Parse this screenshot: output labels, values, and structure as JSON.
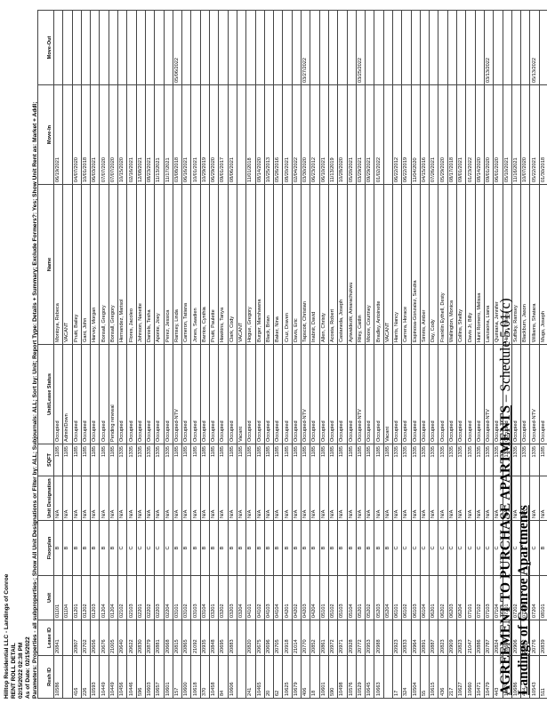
{
  "header": {
    "company": "Hilltop Residential LLC - Landings of Conroe",
    "report_title": "RENT ROLL DETAIL",
    "printed": "02/15/2022 02:38 PM",
    "as_of": "As of Date: 02/15/2022",
    "parameters": "Parameters: Properties - all subproperties-; Show All Unit Designations or Filter by: ALL; Subjournals: ALL; Sort by: Unit; Report Type: Details + Summary; Exclude Formers?: Yes; Show Unit Rent as: Market + Addl;"
  },
  "columns": [
    "Resh ID",
    "Lease ID",
    "Unit",
    "Floorplan",
    "Unit Designation",
    "SQFT",
    "Unit/Lease Status",
    "Name",
    "Move-In",
    "Move-Out"
  ],
  "rows": [
    [
      "10586",
      "20841",
      "01101",
      "B",
      "N/A",
      "1185",
      "Occupied",
      "Montoya, Rebeca",
      "06/19/2021",
      ""
    ],
    [
      "",
      "",
      "01104",
      "B",
      "N/A",
      "1185",
      "Admin/Down",
      "VACANT",
      "",
      ""
    ],
    [
      "416",
      "20807",
      "01201",
      "B",
      "N/A",
      "1185",
      "Occupied",
      "Pruitt, Bailey",
      "04/07/2020",
      ""
    ],
    [
      "226",
      "20702",
      "01202",
      "B",
      "N/A",
      "1185",
      "Occupied",
      "Gant, John",
      "10/01/2018",
      ""
    ],
    [
      "10593",
      "20656",
      "01203",
      "B",
      "N/A",
      "1185",
      "Occupied",
      "Harvey, Morgan",
      "06/03/2021",
      ""
    ],
    [
      "10449",
      "20676",
      "01204",
      "B",
      "N/A",
      "1185",
      "Occupied",
      "Bonsall, Gregory",
      "07/07/2020",
      ""
    ],
    [
      "10449",
      "21005",
      "01204",
      "B",
      "N/A",
      "1185",
      "Pending renewal",
      "Bonsall, Gregory",
      "07/07/2020",
      ""
    ],
    [
      "10456",
      "20640",
      "02102",
      "C",
      "N/A",
      "1335",
      "Occupied",
      "Hernandez, Marisol",
      "10/15/2020",
      ""
    ],
    [
      "10446",
      "20622",
      "02103",
      "C",
      "N/A",
      "1335",
      "Occupied",
      "Flores, Jacoleo",
      "02/16/2021",
      ""
    ],
    [
      "596",
      "20830",
      "02201",
      "C",
      "N/A",
      "1335",
      "Occupied",
      "Johnson, Nanette",
      "12/08/2021",
      ""
    ],
    [
      "10603",
      "20879",
      "02202",
      "C",
      "N/A",
      "1335",
      "Occupied",
      "Daniels, Tesha",
      "08/23/2021",
      ""
    ],
    [
      "10657",
      "20881",
      "02203",
      "C",
      "N/A",
      "1335",
      "Occupied",
      "Aponte, Joey",
      "11/13/2021",
      ""
    ],
    [
      "10601",
      "20668",
      "02204",
      "C",
      "N/A",
      "1335",
      "Occupied",
      "Perez, Jessica",
      "11/17/2021",
      ""
    ],
    [
      "157",
      "20815",
      "03101",
      "B",
      "N/A",
      "1185",
      "Occupied-NTV",
      "Ramsey, Linda",
      "03/08/2018",
      "05/06/2022"
    ],
    [
      "10600",
      "20865",
      "03102",
      "B",
      "N/A",
      "1185",
      "Occupied",
      "Cameron, Tatiana",
      "06/16/2021",
      ""
    ],
    [
      "10618",
      "21092",
      "03103",
      "B",
      "N/A",
      "1185",
      "Occupied",
      "Jones, Saadien",
      "10/01/2021",
      ""
    ],
    [
      "370",
      "20935",
      "03104",
      "B",
      "N/A",
      "1185",
      "Occupied",
      "Barrios, Cynthia",
      "10/29/2019",
      ""
    ],
    [
      "10458",
      "20848",
      "03201",
      "B",
      "N/A",
      "1185",
      "Occupied",
      "Pruitt, Paulette",
      "06/29/2020",
      ""
    ],
    [
      "84",
      "20695",
      "03202",
      "B",
      "N/A",
      "1185",
      "Occupied",
      "Hawkins, Tanya",
      "09/01/2017",
      ""
    ],
    [
      "10606",
      "20883",
      "03203",
      "B",
      "N/A",
      "1185",
      "Occupied",
      "Clark, Cody",
      "08/06/2021",
      ""
    ],
    [
      "",
      "",
      "03204",
      "B",
      "N/A",
      "1185",
      "Vacant",
      "VACANT",
      "",
      ""
    ],
    [
      "241",
      "20820",
      "04101",
      "B",
      "N/A",
      "1185",
      "Occupied",
      "Hogue, Gregory",
      "11/01/2018",
      ""
    ],
    [
      "10465",
      "20675",
      "04102",
      "B",
      "N/A",
      "1185",
      "Occupied",
      "Burger, Marshawna",
      "08/14/2020",
      ""
    ],
    [
      "20",
      "20696",
      "04103",
      "B",
      "N/A",
      "1185",
      "Occupied",
      "Black, Brian",
      "10/25/2013",
      ""
    ],
    [
      "62",
      "20705",
      "04104",
      "B",
      "N/A",
      "1185",
      "Occupied",
      "Baker, Nina",
      "05/26/2016",
      ""
    ],
    [
      "10625",
      "20918",
      "04201",
      "B",
      "N/A",
      "1185",
      "Occupied",
      "Cruz, Draven",
      "08/20/2021",
      ""
    ],
    [
      "10679",
      "21014",
      "04202",
      "B",
      "N/A",
      "1185",
      "Occupied",
      "Davis, Eric",
      "02/04/2022",
      ""
    ],
    [
      "406",
      "20770",
      "04203",
      "B",
      "N/A",
      "1185",
      "Occupied-NTV",
      "Tapscott, Christian",
      "03/30/2020",
      "03/27/2022"
    ],
    [
      "18",
      "20852",
      "04204",
      "B",
      "N/A",
      "1185",
      "Occupied",
      "Inabnit, David",
      "06/23/2012",
      ""
    ],
    [
      "10601",
      "20861",
      "05101",
      "B",
      "N/A",
      "1185",
      "Occupied",
      "Allen, Christy",
      "06/10/2021",
      ""
    ],
    [
      "590",
      "20972",
      "05102",
      "B",
      "N/A",
      "1185",
      "Occupied",
      "Acosta, Robert",
      "11/13/2019",
      ""
    ],
    [
      "10498",
      "20971",
      "05103",
      "B",
      "N/A",
      "1185",
      "Occupied",
      "Castaneda, Joseph",
      "10/28/2020",
      ""
    ],
    [
      "10576",
      "20928",
      "05104",
      "B",
      "N/A",
      "1185",
      "Occupied",
      "Ayiwaldezik, Amarachukwu",
      "05/20/2021",
      ""
    ],
    [
      "10529",
      "20772",
      "05201",
      "B",
      "N/A",
      "1185",
      "Occupied-NTV",
      "Riley, Caitlin",
      "03/29/2021",
      "03/25/2022"
    ],
    [
      "10645",
      "20953",
      "05202",
      "B",
      "N/A",
      "1185",
      "Occupied",
      "Moore, Courtney",
      "09/29/2021",
      ""
    ],
    [
      "10663",
      "20988",
      "05203",
      "B",
      "N/A",
      "1185",
      "Occupied",
      "Bradley, Antoinette",
      "01/02/2022",
      ""
    ],
    [
      "",
      "",
      "05204",
      "B",
      "N/A",
      "1185",
      "Vacant",
      "VACANT",
      "",
      ""
    ],
    [
      "17",
      "20923",
      "06101",
      "C",
      "N/A",
      "1335",
      "Occupied",
      "Harris, Nancy",
      "06/22/2012",
      ""
    ],
    [
      "324",
      "20833",
      "06102",
      "C",
      "N/A",
      "1335",
      "Occupied",
      "Carrera, Horace",
      "06/22/2019",
      ""
    ],
    [
      "10504",
      "20964",
      "06103",
      "C",
      "N/A",
      "1335",
      "Occupied",
      "Espinosa-Gonzalez, Sandra",
      "11/04/2020",
      ""
    ],
    [
      "55",
      "20891",
      "06104",
      "C",
      "N/A",
      "1335",
      "Occupied",
      "Simms, Amber",
      "04/15/2016",
      ""
    ],
    [
      "10615",
      "20887",
      "06201",
      "C",
      "N/A",
      "1335",
      "Occupied",
      "Day, Cody",
      "07/26/2021",
      ""
    ],
    [
      "436",
      "20823",
      "06202",
      "C",
      "N/A",
      "1335",
      "Occupied",
      "Franklin Eythell, Desty",
      "05/29/2020",
      ""
    ],
    [
      "217",
      "20909",
      "06203",
      "C",
      "N/A",
      "1335",
      "Occupied",
      "Wallington, Monica",
      "08/17/2018",
      ""
    ],
    [
      "10627",
      "20823",
      "06204",
      "C",
      "N/A",
      "1335",
      "Occupied",
      "Collins, Shelby",
      "09/01/2021",
      ""
    ],
    [
      "10660",
      "21047",
      "07101",
      "C",
      "N/A",
      "1335",
      "Occupied",
      "Davis Jr, Billy",
      "01/23/2022",
      ""
    ],
    [
      "10471",
      "20886",
      "07102",
      "C",
      "N/A",
      "1335",
      "Occupied",
      "Hunt Romero, Melissa",
      "08/14/2020",
      ""
    ],
    [
      "10479",
      "20787",
      "07103",
      "C",
      "N/A",
      "1335",
      "Occupied-NTV",
      "Lanzaona, Liana",
      "09/01/2020",
      "03/13/2022"
    ],
    [
      "443",
      "20824",
      "07104",
      "C",
      "N/A",
      "1335",
      "Occupied",
      "Quintana, Jennifer",
      "06/01/2020",
      ""
    ],
    [
      "10574",
      "20698",
      "07201",
      "C",
      "N/A",
      "1335",
      "Occupied",
      "Hartin, Tiffany",
      "05/10/2021",
      ""
    ],
    [
      "10686",
      "20906",
      "07202",
      "C",
      "N/A",
      "1335",
      "Occupied",
      "Suffoky, Ramsey",
      "11/16/2021",
      ""
    ],
    [
      "404",
      "20902",
      "07203",
      "C",
      "N/A",
      "1335",
      "Occupied",
      "Blackburn, Jason",
      "10/07/2020",
      ""
    ],
    [
      "10543",
      "20776",
      "07204",
      "C",
      "N/A",
      "1335",
      "Occupied-NTV",
      "Williams, Shatara",
      "05/22/2021",
      "05/13/2022"
    ],
    [
      "511",
      "20839",
      "08101",
      "B",
      "N/A",
      "1185",
      "Occupied",
      "Mugo, Joseph",
      "01/30/2018",
      ""
    ]
  ],
  "footer": {
    "agreement": "AGREEMENT TO PURCHASE APARTMENTS",
    "schedule": " – Schedule 5.01(c)",
    "property": "Landings of Conroe Apartments"
  }
}
